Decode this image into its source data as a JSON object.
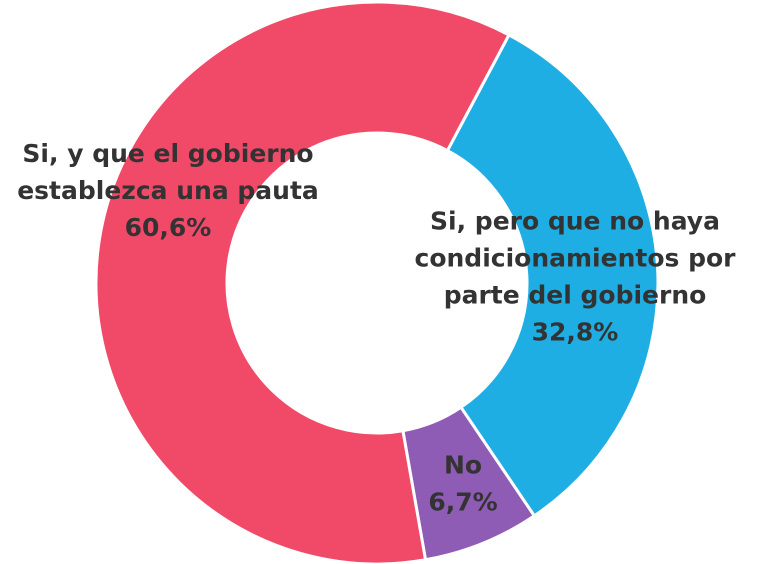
{
  "chart_data": {
    "type": "donut",
    "categories": [
      [
        "Si, y que el gobierno",
        "establezca una pauta"
      ],
      [
        "Si, pero que no haya",
        "condicionamientos por",
        "parte del gobierno"
      ],
      [
        "No"
      ]
    ],
    "values": [
      60.6,
      32.8,
      6.7
    ],
    "value_labels": [
      "60,6%",
      "32,8%",
      "6,7%"
    ],
    "colors": [
      "#f04a68",
      "#1eaee4",
      "#8e5bb5"
    ]
  }
}
